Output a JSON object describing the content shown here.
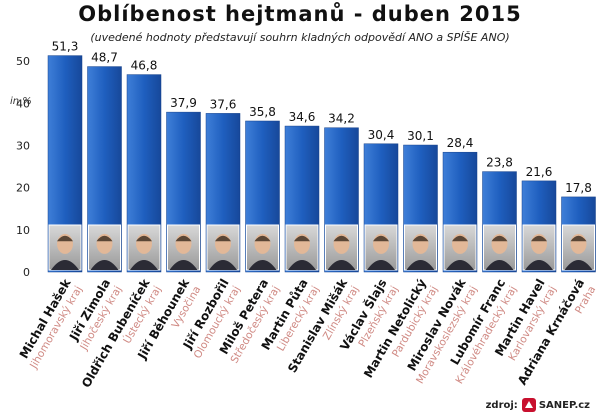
{
  "chart_data": {
    "type": "bar",
    "title": "Oblíbenost hejtmanů - duben 2015",
    "subtitle": "(uvedené hodnoty představují souhrn kladných odpovědí ANO a SPÍŠE ANO)",
    "ylabel": "in %",
    "ylim": [
      0,
      55
    ],
    "yticks": [
      0,
      10,
      20,
      30,
      40,
      50
    ],
    "grid": false,
    "bar_color": "#1f5fbf",
    "categories": [
      "Michal Hašek",
      "Jiří Zimola",
      "Oldřich Bubeníček",
      "Jiří Běhounek",
      "Jiří Rozbořil",
      "Miloš Petera",
      "Martin Půta",
      "Stanislav Mišák",
      "Václav Šlajs",
      "Martin Netolický",
      "Miroslav Novák",
      "Lubomír Franc",
      "Martin Havel",
      "Adriana Krnáčová"
    ],
    "regions": [
      "Jihomoravský kraj",
      "Jihočeský kraj",
      "Ústecký kraj",
      "Vysočina",
      "Olomoucký kraj",
      "Středočeský kraj",
      "Liberecký kraj",
      "Zlínský kraj",
      "Plzeňský kraj",
      "Pardubický kraj",
      "Moravskoslezský kraj",
      "Královéhradecký kraj",
      "Karlovarský kraj",
      "Praha"
    ],
    "values": [
      51.3,
      48.7,
      46.8,
      37.9,
      37.6,
      35.8,
      34.6,
      34.2,
      30.4,
      30.1,
      28.4,
      23.8,
      21.6,
      17.8
    ],
    "value_labels": [
      "51,3",
      "48,7",
      "46,8",
      "37,9",
      "37,6",
      "35,8",
      "34,6",
      "34,2",
      "30,4",
      "30,1",
      "28,4",
      "23,8",
      "21,6",
      "17,8"
    ]
  },
  "source": {
    "label": "zdroj:",
    "logo_text": "SANEP.cz",
    "logo_icon": "sanep-logo-icon"
  }
}
